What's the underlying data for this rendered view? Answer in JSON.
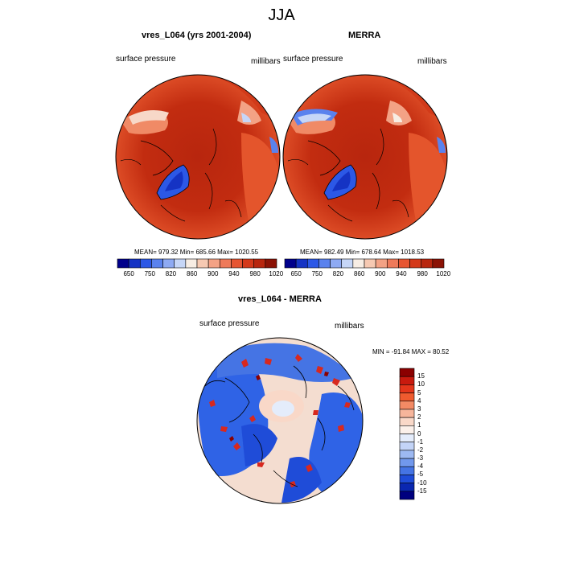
{
  "title": "JJA",
  "colors": {
    "map_fill": "#c22c10",
    "map_mid": "#e2542a",
    "ocean_cold": "#1f4fd8",
    "diff_blue": "#2f63e6",
    "diff_red": "#d8281e",
    "diff_light": "#f6e6dc"
  },
  "panels": [
    {
      "title": "vres_L064 (yrs 2001-2004)",
      "variable": "surface pressure",
      "units": "millibars",
      "stats": "MEAN= 979.32  Min= 685.66  Max= 1020.55"
    },
    {
      "title": "MERRA",
      "variable": "surface pressure",
      "units": "millibars",
      "stats": "MEAN= 982.49  Min= 678.64  Max= 1018.53"
    }
  ],
  "colorbar": {
    "labels": [
      "650",
      "750",
      "820",
      "860",
      "900",
      "940",
      "980",
      "1020"
    ],
    "colors": [
      "#00008b",
      "#1533c4",
      "#2c58e6",
      "#5a82ee",
      "#8eaaf3",
      "#c6d6f7",
      "#f7ede4",
      "#f6c9b2",
      "#f3a285",
      "#ee7a5a",
      "#e65532",
      "#d4391a",
      "#b8260e",
      "#8b1205"
    ]
  },
  "difference": {
    "title": "vres_L064 - MERRA",
    "variable": "surface pressure",
    "units": "millibars",
    "stats": "MIN = -91.84 MAX =  80.52",
    "levels": [
      "15",
      "10",
      "5",
      "4",
      "3",
      "2",
      "1",
      "0",
      "-1",
      "-2",
      "-3",
      "-4",
      "-5",
      "-10",
      "-15"
    ],
    "level_colors": [
      "#8b0000",
      "#c81a0e",
      "#e4361b",
      "#ef5b2f",
      "#f38a64",
      "#f6b59b",
      "#f9d8c8",
      "#fbf0ea",
      "#e4ecfb",
      "#c3d4f7",
      "#9db9f2",
      "#7198ec",
      "#4574e4",
      "#1f4cd8",
      "#0a27b0",
      "#00007f"
    ]
  }
}
